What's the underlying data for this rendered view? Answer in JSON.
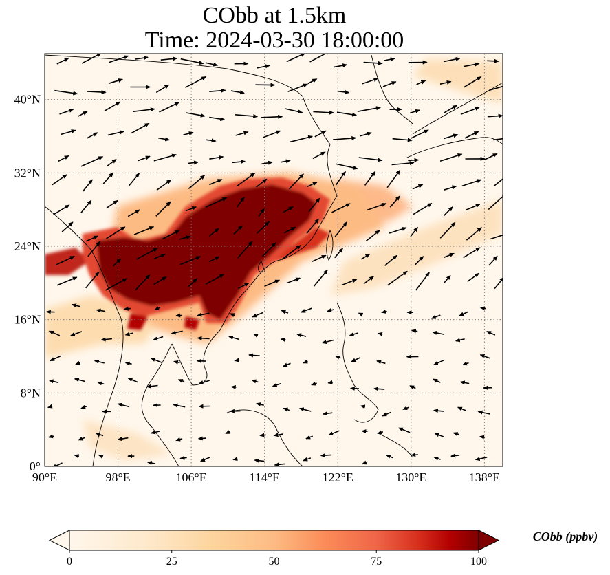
{
  "title": {
    "line1": "CObb at 1.5km",
    "line2": "Time: 2024-03-30 18:00:00"
  },
  "map": {
    "variable": "CObb",
    "level": "1.5km",
    "extent": {
      "lon": [
        90,
        140
      ],
      "lat": [
        0,
        45
      ]
    },
    "lon_ticks": [
      {
        "value": 90,
        "label": "90°E"
      },
      {
        "value": 98,
        "label": "98°E"
      },
      {
        "value": 106,
        "label": "106°E"
      },
      {
        "value": 114,
        "label": "114°E"
      },
      {
        "value": 122,
        "label": "122°E"
      },
      {
        "value": 130,
        "label": "130°E"
      },
      {
        "value": 138,
        "label": "138°E"
      }
    ],
    "lat_ticks": [
      {
        "value": 0,
        "label": "0°"
      },
      {
        "value": 8,
        "label": "8°N"
      },
      {
        "value": 16,
        "label": "16°N"
      },
      {
        "value": 24,
        "label": "24°N"
      },
      {
        "value": 32,
        "label": "32°N"
      },
      {
        "value": 40,
        "label": "40°N"
      }
    ],
    "gridlines": "dotted",
    "colormap": "OrRd",
    "colors": {
      "low": "#fff7ec",
      "light": "#fde0b8",
      "mid": "#fc8d59",
      "high": "#d7301f",
      "max": "#7f0000",
      "coast": "#000000",
      "grid": "#7a7a7a",
      "vectors": "#000000"
    }
  },
  "colorbar": {
    "label": "CObb (ppbv)",
    "min": 0,
    "max": 100,
    "ticks": [
      {
        "value": 0,
        "label": "0"
      },
      {
        "value": 25,
        "label": "25"
      },
      {
        "value": 50,
        "label": "50"
      },
      {
        "value": 75,
        "label": "75"
      },
      {
        "value": 100,
        "label": "100"
      }
    ],
    "extend": "both"
  }
}
